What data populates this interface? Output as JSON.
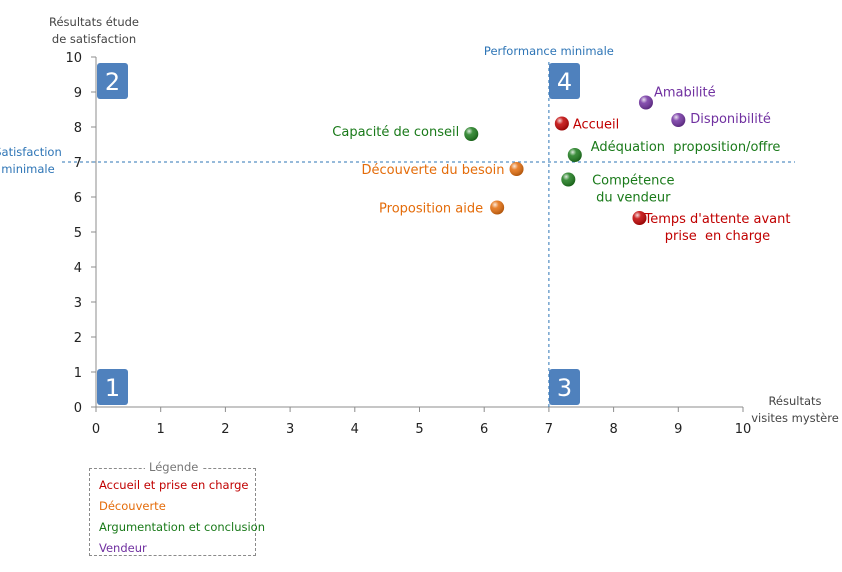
{
  "colors": {
    "accueil": "#c00000",
    "decouverte": "#e46c0a",
    "argumentation": "#1a7a1a",
    "vendeur": "#7030a0",
    "reference": "#2e75b6",
    "quadrant_box": "#4f81bd"
  },
  "chart_data": {
    "type": "scatter",
    "xlim": [
      0,
      10
    ],
    "ylim": [
      0,
      10
    ],
    "x_ticks": [
      "0",
      "1",
      "2",
      "3",
      "4",
      "5",
      "6",
      "7",
      "8",
      "9",
      "10"
    ],
    "y_ticks": [
      "0",
      "1",
      "2",
      "3",
      "4",
      "5",
      "6",
      "7",
      "8",
      "9",
      "10"
    ],
    "grid": false,
    "ylabel": [
      "Résultats étude",
      "de satisfaction"
    ],
    "xlabel": [
      "Résultats",
      "visites mystère"
    ],
    "reference_lines": {
      "x": 7,
      "x_label": "Performance minimale",
      "y": 7,
      "y_label": [
        "Satisfaction",
        "minimale"
      ]
    },
    "quadrants": [
      {
        "label": "2",
        "corner": "top-left"
      },
      {
        "label": "4",
        "corner": "top-right-of-reference"
      },
      {
        "label": "1",
        "corner": "bottom-left"
      },
      {
        "label": "3",
        "corner": "bottom-right-of-reference"
      }
    ],
    "series": [
      {
        "name": "Accueil et prise en charge",
        "color_key": "accueil",
        "points": [
          {
            "label": [
              "Accueil"
            ],
            "x": 7.2,
            "y": 8.1
          },
          {
            "label": [
              "Temps d'attente avant",
              "prise  en charge"
            ],
            "x": 8.4,
            "y": 5.4
          }
        ]
      },
      {
        "name": "Découverte",
        "color_key": "decouverte",
        "points": [
          {
            "label": [
              "Découverte du besoin"
            ],
            "x": 6.5,
            "y": 6.8
          },
          {
            "label": [
              "Proposition aide"
            ],
            "x": 6.2,
            "y": 5.7
          }
        ]
      },
      {
        "name": "Argumentation et conclusion",
        "color_key": "argumentation",
        "points": [
          {
            "label": [
              "Capacité de conseil"
            ],
            "x": 5.8,
            "y": 7.8
          },
          {
            "label": [
              "Adéquation  proposition/offre"
            ],
            "x": 7.4,
            "y": 7.2
          },
          {
            "label": [
              "Compétence",
              "du vendeur"
            ],
            "x": 7.3,
            "y": 6.5
          }
        ]
      },
      {
        "name": "Vendeur",
        "color_key": "vendeur",
        "points": [
          {
            "label": [
              "Amabilité"
            ],
            "x": 8.5,
            "y": 8.7
          },
          {
            "label": [
              "Disponibilité"
            ],
            "x": 9.0,
            "y": 8.2
          }
        ]
      }
    ]
  },
  "legend": {
    "title": "Légende",
    "items": [
      {
        "label": "Accueil et prise en charge",
        "color_key": "accueil"
      },
      {
        "label": "Découverte",
        "color_key": "decouverte"
      },
      {
        "label": "Argumentation et conclusion",
        "color_key": "argumentation"
      },
      {
        "label": "Vendeur",
        "color_key": "vendeur"
      }
    ]
  }
}
